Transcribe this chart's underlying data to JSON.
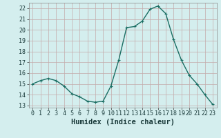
{
  "x": [
    0,
    1,
    2,
    3,
    4,
    5,
    6,
    7,
    8,
    9,
    10,
    11,
    12,
    13,
    14,
    15,
    16,
    17,
    18,
    19,
    20,
    21,
    22,
    23
  ],
  "y": [
    15.0,
    15.3,
    15.5,
    15.3,
    14.8,
    14.1,
    13.8,
    13.4,
    13.3,
    13.4,
    14.8,
    17.2,
    20.2,
    20.3,
    20.8,
    21.9,
    22.2,
    21.5,
    19.1,
    17.2,
    15.8,
    15.0,
    14.0,
    13.1
  ],
  "xlim": [
    -0.5,
    23.5
  ],
  "ylim": [
    12.8,
    22.5
  ],
  "yticks": [
    13,
    14,
    15,
    16,
    17,
    18,
    19,
    20,
    21,
    22
  ],
  "xticks": [
    0,
    1,
    2,
    3,
    4,
    5,
    6,
    7,
    8,
    9,
    10,
    11,
    12,
    13,
    14,
    15,
    16,
    17,
    18,
    19,
    20,
    21,
    22,
    23
  ],
  "xlabel": "Humidex (Indice chaleur)",
  "line_color": "#1a6e63",
  "marker": "P",
  "marker_size": 2.2,
  "bg_color": "#d4eeee",
  "grid_color": "#c4aaaa",
  "xlabel_fontsize": 7.5,
  "tick_fontsize": 6,
  "line_width": 1.0
}
